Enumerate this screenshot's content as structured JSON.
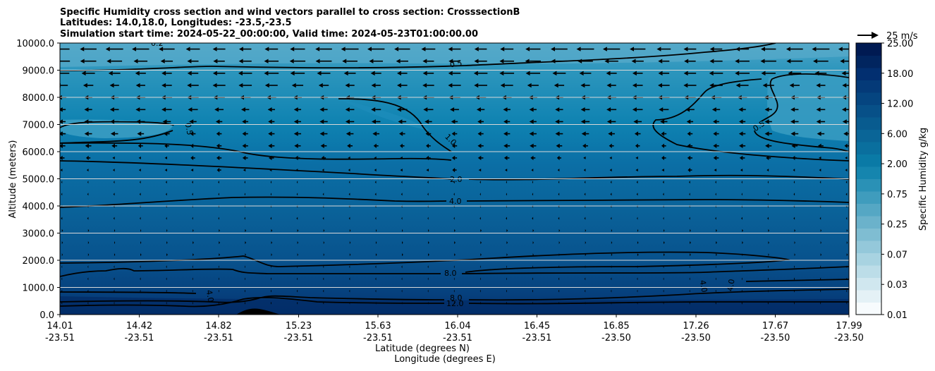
{
  "chart_data": {
    "type": "contour",
    "title_lines": [
      "Specific Humidity cross section and wind vectors parallel to cross section: CrosssectionB",
      "Latitudes: 14.0,18.0, Longitudes: -23.5,-23.5",
      "Simulation start time: 2024-05-22_00:00:00, Valid time: 2024-05-23T01:00:00.00"
    ],
    "xlabel_lat": "Latitude (degrees N)",
    "xlabel_lon": "Longitude (degrees E)",
    "ylabel": "Altitude (meters)",
    "ylim": [
      0,
      10000
    ],
    "y_ticks": [
      "0.0",
      "1000.0",
      "2000.0",
      "3000.0",
      "4000.0",
      "5000.0",
      "6000.0",
      "7000.0",
      "8000.0",
      "9000.0",
      "10000.0"
    ],
    "x_ticks": [
      {
        "lat": "14.01",
        "lon": "-23.51"
      },
      {
        "lat": "14.42",
        "lon": "-23.51"
      },
      {
        "lat": "14.82",
        "lon": "-23.51"
      },
      {
        "lat": "15.23",
        "lon": "-23.51"
      },
      {
        "lat": "15.63",
        "lon": "-23.51"
      },
      {
        "lat": "16.04",
        "lon": "-23.51"
      },
      {
        "lat": "16.45",
        "lon": "-23.51"
      },
      {
        "lat": "16.85",
        "lon": "-23.50"
      },
      {
        "lat": "17.26",
        "lon": "-23.50"
      },
      {
        "lat": "17.67",
        "lon": "-23.50"
      },
      {
        "lat": "17.99",
        "lon": "-23.50"
      }
    ],
    "colorbar": {
      "label": "Specific Humidity g/kg",
      "ticks": [
        "0.01",
        "0.03",
        "0.07",
        "0.25",
        "0.75",
        "2.00",
        "6.00",
        "12.00",
        "18.00",
        "25.00"
      ]
    },
    "quiver_key": "25 m/s",
    "contour_labels": [
      "0.5",
      "0.5",
      "0.5",
      "1.0",
      "2.0",
      "4.0",
      "8.0",
      "8.0",
      "12.0",
      "4.0",
      "4.0",
      "4.0",
      "0.2"
    ],
    "humidity_profile": [
      {
        "altitude": 0,
        "q": 14
      },
      {
        "altitude": 500,
        "q": 11
      },
      {
        "altitude": 1500,
        "q": 8
      },
      {
        "altitude": 3000,
        "q": 6
      },
      {
        "altitude": 4000,
        "q": 4
      },
      {
        "altitude": 5000,
        "q": 2
      },
      {
        "altitude": 6000,
        "q": 1
      },
      {
        "altitude": 7000,
        "q": 0.5
      },
      {
        "altitude": 9000,
        "q": 0.5
      },
      {
        "altitude": 10000,
        "q": 0.3
      }
    ]
  }
}
